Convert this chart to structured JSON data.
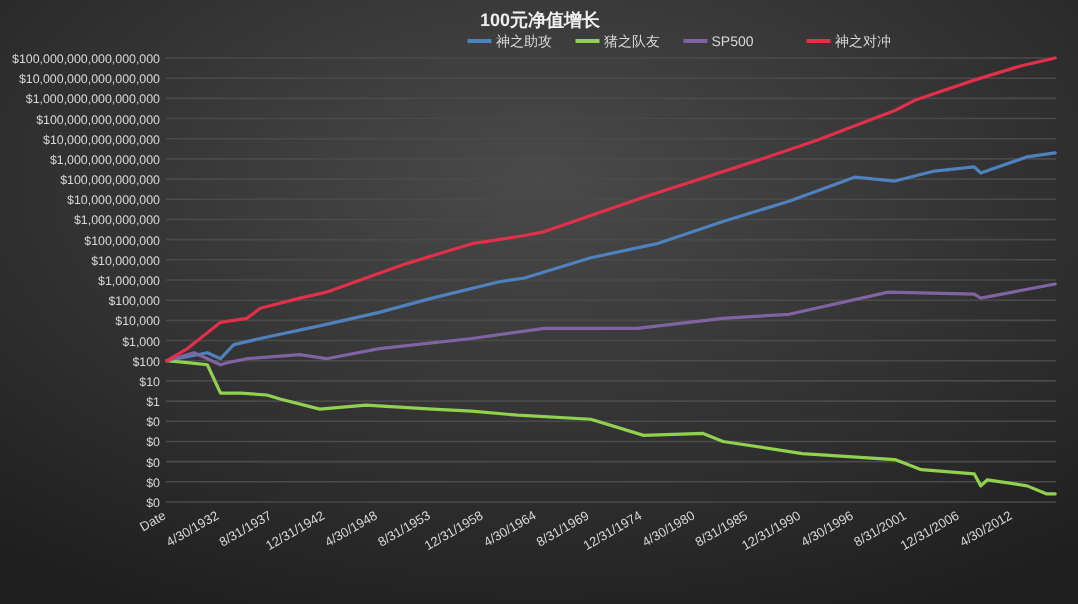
{
  "chart_data": {
    "type": "line",
    "title": "100元净值增长",
    "log": "y",
    "grid": "y",
    "legend": "top",
    "line_style": "solid",
    "marker": "none",
    "xlim": [
      "1926-12",
      "2016-09"
    ],
    "xticks": [
      {
        "value": "1926-12-31",
        "label": "Date"
      },
      {
        "value": "1932-04-30",
        "label": "4/30/1932"
      },
      {
        "value": "1937-08-31",
        "label": "8/31/1937"
      },
      {
        "value": "1942-12-31",
        "label": "12/31/1942"
      },
      {
        "value": "1948-04-30",
        "label": "4/30/1948"
      },
      {
        "value": "1953-08-31",
        "label": "8/31/1953"
      },
      {
        "value": "1958-12-31",
        "label": "12/31/1958"
      },
      {
        "value": "1964-04-30",
        "label": "4/30/1964"
      },
      {
        "value": "1969-08-31",
        "label": "8/31/1969"
      },
      {
        "value": "1974-12-31",
        "label": "12/31/1974"
      },
      {
        "value": "1980-04-30",
        "label": "4/30/1980"
      },
      {
        "value": "1985-08-31",
        "label": "8/31/1985"
      },
      {
        "value": "1990-12-31",
        "label": "12/31/1990"
      },
      {
        "value": "1996-04-30",
        "label": "4/30/1996"
      },
      {
        "value": "2001-08-31",
        "label": "8/31/2001"
      },
      {
        "value": "2006-12-31",
        "label": "12/31/2006"
      },
      {
        "value": "2012-04-30",
        "label": "4/30/2012"
      }
    ],
    "ylim": [
      1e-05,
      1e+17
    ],
    "yticks": [
      {
        "value": 1e-05,
        "label": "$0"
      },
      {
        "value": 0.0001,
        "label": "$0"
      },
      {
        "value": 0.001,
        "label": "$0"
      },
      {
        "value": 0.01,
        "label": "$0"
      },
      {
        "value": 0.1,
        "label": "$0"
      },
      {
        "value": 1,
        "label": "$1"
      },
      {
        "value": 10,
        "label": "$10"
      },
      {
        "value": 100,
        "label": "$100"
      },
      {
        "value": 1000,
        "label": "$1,000"
      },
      {
        "value": 10000.0,
        "label": "$10,000"
      },
      {
        "value": 100000.0,
        "label": "$100,000"
      },
      {
        "value": 1000000.0,
        "label": "$1,000,000"
      },
      {
        "value": 10000000.0,
        "label": "$10,000,000"
      },
      {
        "value": 100000000.0,
        "label": "$100,000,000"
      },
      {
        "value": 1000000000.0,
        "label": "$1,000,000,000"
      },
      {
        "value": 10000000000.0,
        "label": "$10,000,000,000"
      },
      {
        "value": 100000000000.0,
        "label": "$100,000,000,000"
      },
      {
        "value": 1000000000000.0,
        "label": "$1,000,000,000,000"
      },
      {
        "value": 10000000000000.0,
        "label": "$10,000,000,000,000"
      },
      {
        "value": 100000000000000.0,
        "label": "$100,000,000,000,000"
      },
      {
        "value": 1000000000000000.0,
        "label": "$1,000,000,000,000,000"
      },
      {
        "value": 1e+16,
        "label": "$10,000,000,000,000,000"
      },
      {
        "value": 1e+17,
        "label": "$100,000,000,000,000,000"
      }
    ],
    "series": [
      {
        "name": "神之助攻",
        "color": "#4f81bd",
        "x": [
          "1927-01",
          "1931-02",
          "1932-06",
          "1933-10",
          "1936-06",
          "1943-02",
          "1945-10",
          "1948-06",
          "1953-10",
          "1960-06",
          "1963-02",
          "1969-10",
          "1976-06",
          "1983-02",
          "1989-10",
          "1996-06",
          "2000-06",
          "2004-06",
          "2008-06",
          "2009-02",
          "2013-10",
          "2016-08"
        ],
        "values": [
          100,
          250,
          126,
          630,
          1260,
          6300,
          12600,
          25000,
          126000,
          800000,
          1260000,
          12600000,
          63000000,
          800000000,
          8000000000,
          126000000000,
          80000000000,
          250000000000,
          400000000000,
          200000000000,
          1260000000000,
          2000000000000
        ]
      },
      {
        "name": "猪之队友",
        "color": "#92d050",
        "x": [
          "1927-01",
          "1929-02",
          "1931-02",
          "1932-06",
          "1934-06",
          "1937-02",
          "1938-06",
          "1942-06",
          "1947-02",
          "1953-10",
          "1957-10",
          "1962-06",
          "1969-10",
          "1975-02",
          "1981-02",
          "1983-02",
          "1991-02",
          "2000-06",
          "2003-02",
          "2008-06",
          "2009-02",
          "2009-10",
          "2013-10",
          "2015-10",
          "2016-08"
        ],
        "values": [
          100,
          80,
          63,
          2.5,
          2.5,
          2,
          1.26,
          0.4,
          0.63,
          0.4,
          0.32,
          0.2,
          0.126,
          0.02,
          0.025,
          0.01,
          0.0025,
          0.00126,
          0.0004,
          0.00025,
          6.3e-05,
          0.000126,
          6.3e-05,
          2.5e-05,
          2.5e-05
        ]
      },
      {
        "name": "SP500",
        "color": "#8064a2",
        "x": [
          "1927-01",
          "1929-10",
          "1932-06",
          "1933-02",
          "1935-02",
          "1940-06",
          "1943-02",
          "1948-06",
          "1957-10",
          "1965-02",
          "1974-06",
          "1983-02",
          "1989-10",
          "1999-10",
          "2008-06",
          "2009-02",
          "2016-08"
        ],
        "values": [
          100,
          250,
          63,
          80,
          126,
          200,
          126,
          400,
          1260,
          4000,
          4000,
          12600,
          20000,
          250000,
          200000,
          126000,
          630000
        ]
      },
      {
        "name": "神之对冲",
        "color": "#e0304a",
        "x": [
          "1927-01",
          "1929-02",
          "1932-06",
          "1935-02",
          "1936-06",
          "1940-06",
          "1943-02",
          "1951-02",
          "1957-10",
          "1963-02",
          "1965-02",
          "1975-02",
          "1986-06",
          "1992-06",
          "2000-06",
          "2002-06",
          "2008-06",
          "2013-02",
          "2016-08"
        ],
        "values": [
          100,
          400,
          8000,
          12600,
          40000,
          126000,
          250000,
          6300000,
          63000000,
          160000000,
          250000000,
          12600000000,
          800000000000,
          8000000000000,
          250000000000000,
          800000000000000,
          8000000000000000,
          40000000000000000,
          100000000000000000
        ]
      }
    ]
  }
}
